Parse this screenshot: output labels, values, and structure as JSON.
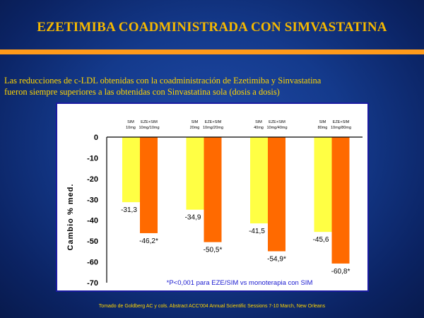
{
  "slide": {
    "title": "EZETIMIBA COADMINISTRADA CON SIMVASTATINA",
    "subtitle_line1": "Las reducciones de c-LDL obtenidas con la coadministración de Ezetimiba y Sinvastatina",
    "subtitle_line2": "fueron siempre superiores a las obtenidas con Sinvastatina sola (dosis a dosis)",
    "source": "Tomado de Goldberg AC y cols. Abstract ACC'004 Annual Scientific Sessions 7-10 March, New Orleans"
  },
  "colors": {
    "sim": "#ffff44",
    "eze_sim": "#ff6a00",
    "title": "#f5b800",
    "rule": "#ff9a1a",
    "subtitle": "#ffd500",
    "note": "#1a1ad0"
  },
  "chart_data": {
    "type": "bar",
    "ylabel": "Cambio % med.",
    "ylim": [
      -70,
      0
    ],
    "yticks": [
      0,
      -10,
      -20,
      -30,
      -40,
      -50,
      -60,
      -70
    ],
    "grid": false,
    "groups": [
      {
        "sim_label": "SIM",
        "sim_dose": "10mg",
        "combo_label": "EZE+SIM",
        "combo_dose": "10mg/10mg"
      },
      {
        "sim_label": "SIM",
        "sim_dose": "20mg",
        "combo_label": "EZE+SIM",
        "combo_dose": "10mg/20mg"
      },
      {
        "sim_label": "SIM",
        "sim_dose": "40mg",
        "combo_label": "EZE+SIM",
        "combo_dose": "10mg/40mg"
      },
      {
        "sim_label": "SIM",
        "sim_dose": "80mg",
        "combo_label": "EZE+SIM",
        "combo_dose": "10mg/80mg"
      }
    ],
    "series": [
      {
        "values": [
          -31.3,
          -34.9,
          -41.5,
          -45.6
        ],
        "labels": [
          "-31,3",
          "-34,9",
          "-41,5",
          "-45,6"
        ]
      },
      {
        "values": [
          -46.2,
          -50.5,
          -54.9,
          -60.8
        ],
        "labels": [
          "-46,2*",
          "-50,5*",
          "-54,9*",
          "-60,8*"
        ]
      }
    ],
    "note": "*P<0,001 para EZE/SIM vs monoterapia con SIM"
  }
}
